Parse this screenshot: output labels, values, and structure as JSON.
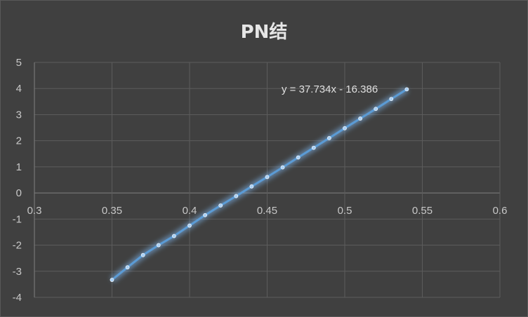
{
  "chart_data": {
    "type": "scatter",
    "title": "PN结",
    "xlim": [
      0.3,
      0.6
    ],
    "ylim": [
      -4,
      5
    ],
    "xticks": [
      "0.3",
      "0.35",
      "0.4",
      "0.45",
      "0.5",
      "0.55",
      "0.6"
    ],
    "yticks": [
      "5",
      "4",
      "3",
      "2",
      "1",
      "0",
      "-1",
      "-2",
      "-3",
      "-4"
    ],
    "grid": true,
    "series": [
      {
        "x": [
          0.35,
          0.36,
          0.37,
          0.38,
          0.39,
          0.4,
          0.41,
          0.42,
          0.43,
          0.44,
          0.45,
          0.46,
          0.47,
          0.48,
          0.49,
          0.5,
          0.51,
          0.52,
          0.53,
          0.54
        ],
        "y": [
          -3.33,
          -2.85,
          -2.38,
          -2.0,
          -1.65,
          -1.25,
          -0.85,
          -0.48,
          -0.12,
          0.25,
          0.61,
          0.98,
          1.36,
          1.73,
          2.1,
          2.48,
          2.85,
          3.22,
          3.6,
          3.97
        ]
      }
    ],
    "trendline": {
      "equation": "y = 37.734x - 16.386",
      "slope": 37.734,
      "intercept": -16.386
    }
  },
  "colors": {
    "line": "#5b9bd5",
    "glow": "#7fb8f0",
    "marker": "#a9d1f7"
  }
}
